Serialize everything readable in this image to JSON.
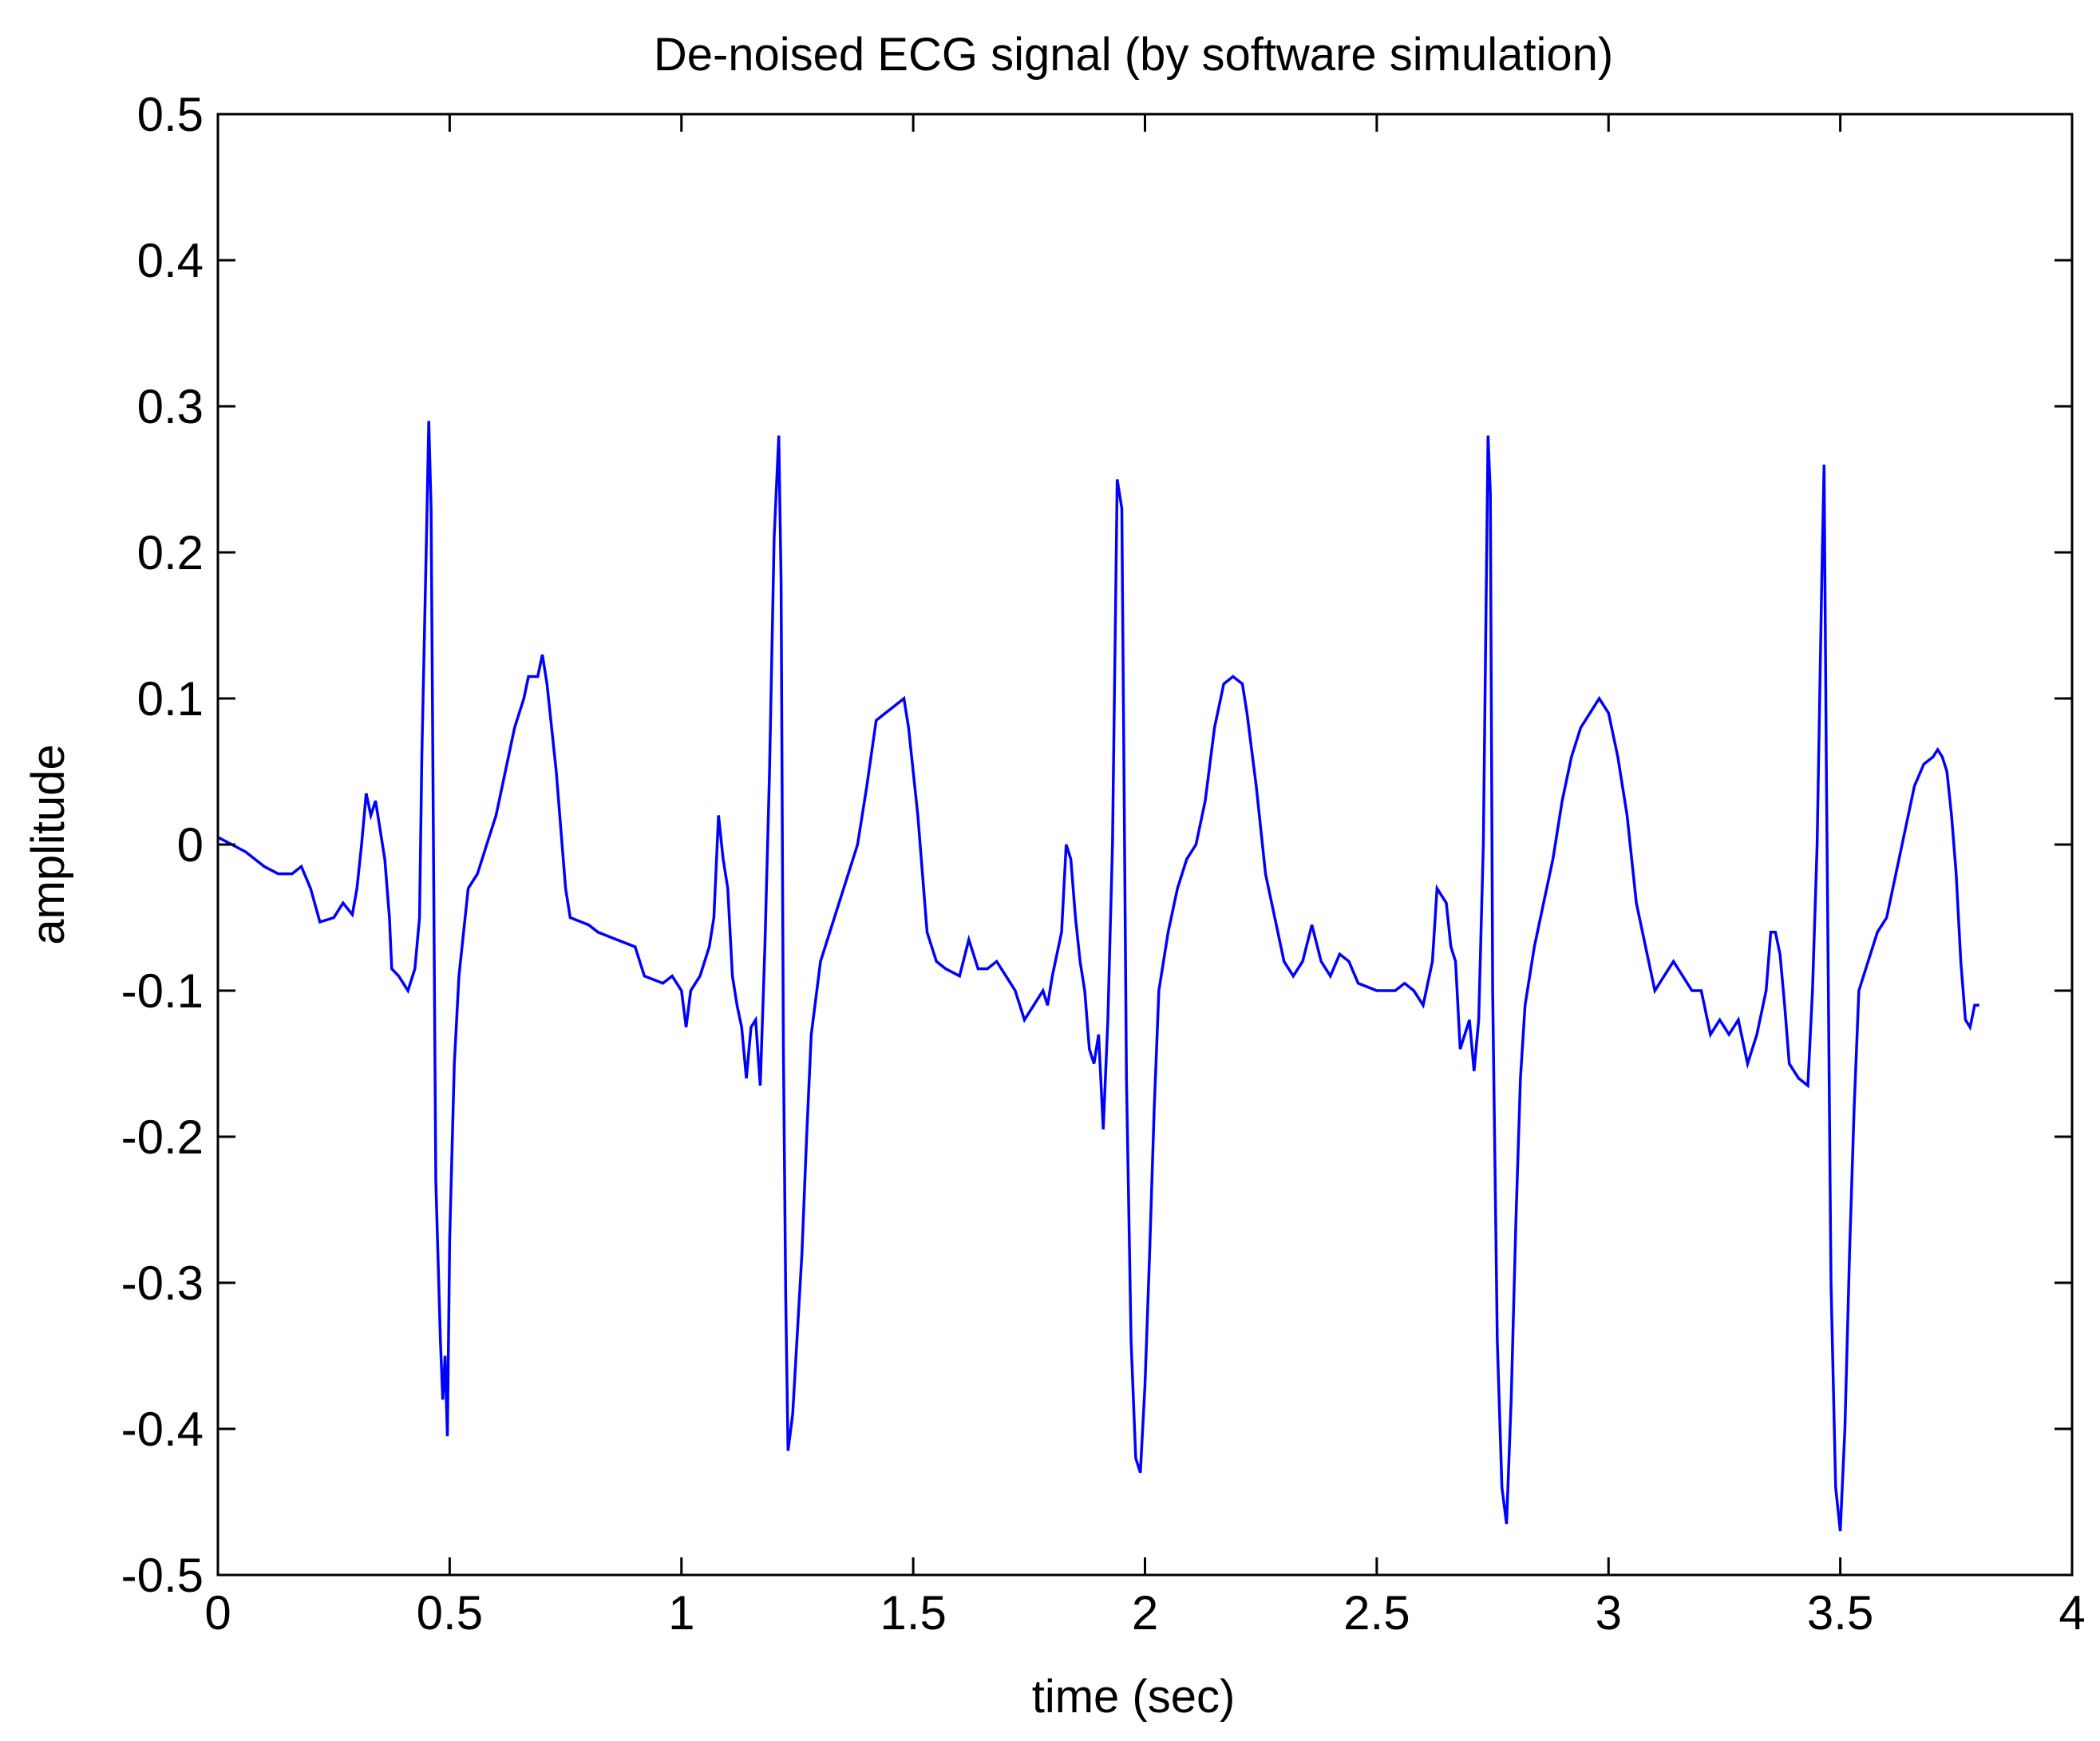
{
  "chart_data": {
    "type": "line",
    "title": "De-noised ECG signal (by software simulation)",
    "xlabel": "time (sec)",
    "ylabel": "amplitude",
    "xlim": [
      0,
      4
    ],
    "ylim": [
      -0.5,
      0.5
    ],
    "x_ticks": [
      "0",
      "0.5",
      "1",
      "1.5",
      "2",
      "2.5",
      "3",
      "3.5",
      "4"
    ],
    "x_tick_values": [
      0,
      0.5,
      1,
      1.5,
      2,
      2.5,
      3,
      3.5,
      4
    ],
    "y_ticks": [
      "0.5",
      "0.4",
      "0.3",
      "0.2",
      "0.1",
      "0",
      "-0.1",
      "-0.2",
      "-0.3",
      "-0.4",
      "-0.5"
    ],
    "y_tick_values": [
      0.5,
      0.4,
      0.3,
      0.2,
      0.1,
      0,
      -0.1,
      -0.2,
      -0.3,
      -0.4,
      -0.5
    ],
    "grid": false,
    "series": [
      {
        "color": "#0000ff",
        "points": [
          [
            0.0,
            0.005
          ],
          [
            0.03,
            0.0
          ],
          [
            0.06,
            -0.005
          ],
          [
            0.1,
            -0.015
          ],
          [
            0.13,
            -0.02
          ],
          [
            0.16,
            -0.02
          ],
          [
            0.18,
            -0.015
          ],
          [
            0.2,
            -0.03
          ],
          [
            0.22,
            -0.053
          ],
          [
            0.25,
            -0.05
          ],
          [
            0.27,
            -0.04
          ],
          [
            0.29,
            -0.048
          ],
          [
            0.3,
            -0.03
          ],
          [
            0.31,
            0.0
          ],
          [
            0.32,
            0.035
          ],
          [
            0.33,
            0.02
          ],
          [
            0.34,
            0.03
          ],
          [
            0.35,
            0.01
          ],
          [
            0.36,
            -0.01
          ],
          [
            0.37,
            -0.05
          ],
          [
            0.375,
            -0.085
          ],
          [
            0.39,
            -0.09
          ],
          [
            0.41,
            -0.1
          ],
          [
            0.425,
            -0.085
          ],
          [
            0.435,
            -0.05
          ],
          [
            0.44,
            0.06
          ],
          [
            0.45,
            0.21
          ],
          [
            0.455,
            0.29
          ],
          [
            0.46,
            0.23
          ],
          [
            0.47,
            -0.23
          ],
          [
            0.48,
            -0.34
          ],
          [
            0.485,
            -0.38
          ],
          [
            0.49,
            -0.35
          ],
          [
            0.495,
            -0.405
          ],
          [
            0.5,
            -0.27
          ],
          [
            0.51,
            -0.15
          ],
          [
            0.52,
            -0.09
          ],
          [
            0.54,
            -0.03
          ],
          [
            0.56,
            -0.02
          ],
          [
            0.58,
            0.0
          ],
          [
            0.6,
            0.02
          ],
          [
            0.62,
            0.05
          ],
          [
            0.64,
            0.08
          ],
          [
            0.66,
            0.1
          ],
          [
            0.67,
            0.115
          ],
          [
            0.69,
            0.115
          ],
          [
            0.7,
            0.13
          ],
          [
            0.71,
            0.11
          ],
          [
            0.73,
            0.05
          ],
          [
            0.75,
            -0.03
          ],
          [
            0.76,
            -0.05
          ],
          [
            0.8,
            -0.055
          ],
          [
            0.82,
            -0.06
          ],
          [
            0.86,
            -0.065
          ],
          [
            0.9,
            -0.07
          ],
          [
            0.92,
            -0.09
          ],
          [
            0.96,
            -0.095
          ],
          [
            0.98,
            -0.09
          ],
          [
            1.0,
            -0.1
          ],
          [
            1.01,
            -0.125
          ],
          [
            1.02,
            -0.1
          ],
          [
            1.04,
            -0.09
          ],
          [
            1.06,
            -0.07
          ],
          [
            1.07,
            -0.05
          ],
          [
            1.08,
            0.02
          ],
          [
            1.09,
            -0.01
          ],
          [
            1.1,
            -0.03
          ],
          [
            1.11,
            -0.09
          ],
          [
            1.12,
            -0.11
          ],
          [
            1.13,
            -0.125
          ],
          [
            1.14,
            -0.16
          ],
          [
            1.15,
            -0.125
          ],
          [
            1.16,
            -0.12
          ],
          [
            1.17,
            -0.165
          ],
          [
            1.18,
            -0.07
          ],
          [
            1.19,
            0.05
          ],
          [
            1.2,
            0.21
          ],
          [
            1.21,
            0.28
          ],
          [
            1.215,
            0.18
          ],
          [
            1.22,
            -0.14
          ],
          [
            1.225,
            -0.31
          ],
          [
            1.23,
            -0.415
          ],
          [
            1.24,
            -0.39
          ],
          [
            1.25,
            -0.335
          ],
          [
            1.26,
            -0.28
          ],
          [
            1.27,
            -0.2
          ],
          [
            1.28,
            -0.13
          ],
          [
            1.3,
            -0.08
          ],
          [
            1.32,
            -0.06
          ],
          [
            1.34,
            -0.04
          ],
          [
            1.36,
            -0.02
          ],
          [
            1.38,
            0.0
          ],
          [
            1.4,
            0.04
          ],
          [
            1.42,
            0.085
          ],
          [
            1.44,
            0.09
          ],
          [
            1.46,
            0.095
          ],
          [
            1.48,
            0.1
          ],
          [
            1.49,
            0.08
          ],
          [
            1.5,
            0.05
          ],
          [
            1.51,
            0.02
          ],
          [
            1.52,
            -0.02
          ],
          [
            1.53,
            -0.06
          ],
          [
            1.55,
            -0.08
          ],
          [
            1.57,
            -0.085
          ],
          [
            1.6,
            -0.09
          ],
          [
            1.62,
            -0.065
          ],
          [
            1.64,
            -0.085
          ],
          [
            1.66,
            -0.085
          ],
          [
            1.68,
            -0.08
          ],
          [
            1.7,
            -0.09
          ],
          [
            1.72,
            -0.1
          ],
          [
            1.74,
            -0.12
          ],
          [
            1.76,
            -0.11
          ],
          [
            1.78,
            -0.1
          ],
          [
            1.79,
            -0.11
          ],
          [
            1.8,
            -0.09
          ],
          [
            1.82,
            -0.06
          ],
          [
            1.83,
            0.0
          ],
          [
            1.84,
            -0.01
          ],
          [
            1.85,
            -0.05
          ],
          [
            1.86,
            -0.08
          ],
          [
            1.87,
            -0.1
          ],
          [
            1.88,
            -0.14
          ],
          [
            1.89,
            -0.15
          ],
          [
            1.9,
            -0.13
          ],
          [
            1.91,
            -0.195
          ],
          [
            1.92,
            -0.12
          ],
          [
            1.93,
            0.0
          ],
          [
            1.94,
            0.25
          ],
          [
            1.95,
            0.23
          ],
          [
            1.96,
            -0.16
          ],
          [
            1.97,
            -0.34
          ],
          [
            1.98,
            -0.42
          ],
          [
            1.99,
            -0.43
          ],
          [
            2.0,
            -0.37
          ],
          [
            2.01,
            -0.28
          ],
          [
            2.02,
            -0.18
          ],
          [
            2.03,
            -0.1
          ],
          [
            2.05,
            -0.06
          ],
          [
            2.07,
            -0.03
          ],
          [
            2.09,
            -0.01
          ],
          [
            2.11,
            0.0
          ],
          [
            2.13,
            0.03
          ],
          [
            2.15,
            0.08
          ],
          [
            2.17,
            0.11
          ],
          [
            2.19,
            0.115
          ],
          [
            2.21,
            0.11
          ],
          [
            2.22,
            0.09
          ],
          [
            2.24,
            0.04
          ],
          [
            2.26,
            -0.02
          ],
          [
            2.28,
            -0.05
          ],
          [
            2.3,
            -0.08
          ],
          [
            2.32,
            -0.09
          ],
          [
            2.34,
            -0.08
          ],
          [
            2.36,
            -0.055
          ],
          [
            2.38,
            -0.08
          ],
          [
            2.4,
            -0.09
          ],
          [
            2.42,
            -0.075
          ],
          [
            2.44,
            -0.08
          ],
          [
            2.46,
            -0.095
          ],
          [
            2.5,
            -0.1
          ],
          [
            2.54,
            -0.1
          ],
          [
            2.56,
            -0.095
          ],
          [
            2.58,
            -0.1
          ],
          [
            2.6,
            -0.11
          ],
          [
            2.62,
            -0.08
          ],
          [
            2.63,
            -0.03
          ],
          [
            2.65,
            -0.04
          ],
          [
            2.66,
            -0.07
          ],
          [
            2.67,
            -0.08
          ],
          [
            2.68,
            -0.14
          ],
          [
            2.7,
            -0.12
          ],
          [
            2.71,
            -0.155
          ],
          [
            2.72,
            -0.12
          ],
          [
            2.73,
            0.0
          ],
          [
            2.74,
            0.28
          ],
          [
            2.745,
            0.24
          ],
          [
            2.75,
            -0.1
          ],
          [
            2.76,
            -0.34
          ],
          [
            2.77,
            -0.44
          ],
          [
            2.78,
            -0.465
          ],
          [
            2.79,
            -0.38
          ],
          [
            2.8,
            -0.26
          ],
          [
            2.81,
            -0.16
          ],
          [
            2.82,
            -0.11
          ],
          [
            2.84,
            -0.07
          ],
          [
            2.86,
            -0.04
          ],
          [
            2.88,
            -0.01
          ],
          [
            2.9,
            0.03
          ],
          [
            2.92,
            0.06
          ],
          [
            2.94,
            0.08
          ],
          [
            2.96,
            0.09
          ],
          [
            2.98,
            0.1
          ],
          [
            3.0,
            0.09
          ],
          [
            3.02,
            0.06
          ],
          [
            3.04,
            0.02
          ],
          [
            3.06,
            -0.04
          ],
          [
            3.08,
            -0.07
          ],
          [
            3.1,
            -0.1
          ],
          [
            3.12,
            -0.09
          ],
          [
            3.14,
            -0.08
          ],
          [
            3.16,
            -0.09
          ],
          [
            3.18,
            -0.1
          ],
          [
            3.2,
            -0.1
          ],
          [
            3.22,
            -0.13
          ],
          [
            3.24,
            -0.12
          ],
          [
            3.26,
            -0.13
          ],
          [
            3.28,
            -0.12
          ],
          [
            3.3,
            -0.15
          ],
          [
            3.32,
            -0.13
          ],
          [
            3.34,
            -0.1
          ],
          [
            3.35,
            -0.06
          ],
          [
            3.36,
            -0.06
          ],
          [
            3.37,
            -0.075
          ],
          [
            3.38,
            -0.11
          ],
          [
            3.39,
            -0.15
          ],
          [
            3.41,
            -0.16
          ],
          [
            3.43,
            -0.165
          ],
          [
            3.44,
            -0.1
          ],
          [
            3.45,
            0.0
          ],
          [
            3.46,
            0.18
          ],
          [
            3.465,
            0.26
          ],
          [
            3.47,
            0.05
          ],
          [
            3.48,
            -0.3
          ],
          [
            3.49,
            -0.44
          ],
          [
            3.5,
            -0.47
          ],
          [
            3.51,
            -0.4
          ],
          [
            3.52,
            -0.28
          ],
          [
            3.53,
            -0.18
          ],
          [
            3.54,
            -0.1
          ],
          [
            3.56,
            -0.08
          ],
          [
            3.58,
            -0.06
          ],
          [
            3.6,
            -0.05
          ],
          [
            3.62,
            -0.02
          ],
          [
            3.64,
            0.01
          ],
          [
            3.66,
            0.04
          ],
          [
            3.68,
            0.055
          ],
          [
            3.7,
            0.06
          ],
          [
            3.71,
            0.065
          ],
          [
            3.72,
            0.06
          ],
          [
            3.73,
            0.05
          ],
          [
            3.74,
            0.02
          ],
          [
            3.75,
            -0.02
          ],
          [
            3.76,
            -0.08
          ],
          [
            3.77,
            -0.12
          ],
          [
            3.78,
            -0.125
          ],
          [
            3.79,
            -0.11
          ],
          [
            3.8,
            -0.11
          ]
        ]
      }
    ]
  }
}
